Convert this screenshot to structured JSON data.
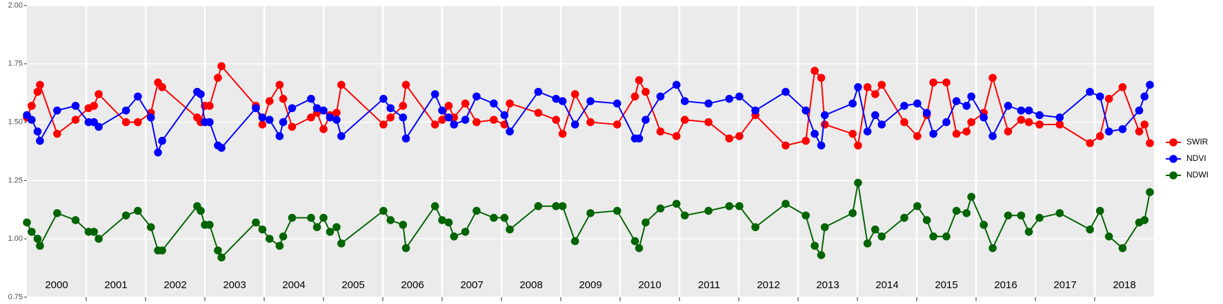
{
  "chart_data": {
    "type": "line",
    "x": [
      2000.0,
      2000.08,
      2000.18,
      2000.22,
      2000.51,
      2000.82,
      2001.04,
      2001.13,
      2001.21,
      2001.67,
      2001.87,
      2002.09,
      2002.21,
      2002.28,
      2002.87,
      2002.93,
      2003.0,
      2003.08,
      2003.22,
      2003.28,
      2003.86,
      2003.97,
      2004.09,
      2004.26,
      2004.32,
      2004.47,
      2004.79,
      2004.89,
      2005.0,
      2005.11,
      2005.22,
      2005.3,
      2006.01,
      2006.13,
      2006.34,
      2006.39,
      2006.88,
      2007.0,
      2007.11,
      2007.2,
      2007.39,
      2007.58,
      2007.87,
      2008.05,
      2008.14,
      2008.62,
      2008.92,
      2009.03,
      2009.24,
      2009.5,
      2009.95,
      2010.25,
      2010.32,
      2010.43,
      2010.68,
      2010.95,
      2011.09,
      2011.49,
      2011.84,
      2012.01,
      2012.28,
      2012.79,
      2013.13,
      2013.28,
      2013.39,
      2013.45,
      2013.92,
      2014.01,
      2014.17,
      2014.3,
      2014.41,
      2014.79,
      2015.01,
      2015.17,
      2015.28,
      2015.5,
      2015.67,
      2015.84,
      2015.92,
      2016.13,
      2016.28,
      2016.54,
      2016.76,
      2016.89,
      2017.07,
      2017.41,
      2017.92,
      2018.09,
      2018.24,
      2018.47,
      2018.75,
      2018.84,
      2018.93
    ],
    "series": [
      {
        "name": "SWIR",
        "color": "#ff0000",
        "values": [
          1.52,
          1.57,
          1.63,
          1.66,
          1.45,
          1.51,
          1.56,
          1.57,
          1.62,
          1.5,
          1.5,
          1.54,
          1.67,
          1.65,
          1.52,
          1.5,
          1.57,
          1.57,
          1.69,
          1.74,
          1.57,
          1.49,
          1.59,
          1.66,
          1.6,
          1.48,
          1.52,
          1.54,
          1.47,
          1.53,
          1.54,
          1.66,
          1.49,
          1.52,
          1.57,
          1.66,
          1.49,
          1.51,
          1.57,
          1.52,
          1.58,
          1.5,
          1.51,
          1.49,
          1.58,
          1.54,
          1.51,
          1.45,
          1.62,
          1.5,
          1.49,
          1.61,
          1.68,
          1.63,
          1.46,
          1.44,
          1.51,
          1.5,
          1.43,
          1.44,
          1.53,
          1.4,
          1.42,
          1.72,
          1.69,
          1.49,
          1.45,
          1.4,
          1.65,
          1.62,
          1.66,
          1.5,
          1.44,
          1.53,
          1.67,
          1.67,
          1.45,
          1.46,
          1.5,
          1.54,
          1.69,
          1.46,
          1.51,
          1.5,
          1.49,
          1.49,
          1.41,
          1.44,
          1.6,
          1.65,
          1.46,
          1.49,
          1.41
        ]
      },
      {
        "name": "NDVI",
        "color": "#0000ff",
        "values": [
          1.53,
          1.51,
          1.46,
          1.42,
          1.55,
          1.57,
          1.5,
          1.5,
          1.48,
          1.55,
          1.61,
          1.52,
          1.37,
          1.42,
          1.63,
          1.62,
          1.5,
          1.5,
          1.4,
          1.39,
          1.56,
          1.52,
          1.51,
          1.44,
          1.5,
          1.56,
          1.6,
          1.56,
          1.55,
          1.52,
          1.51,
          1.44,
          1.6,
          1.56,
          1.52,
          1.43,
          1.62,
          1.55,
          1.52,
          1.49,
          1.51,
          1.61,
          1.58,
          1.53,
          1.46,
          1.63,
          1.6,
          1.59,
          1.49,
          1.59,
          1.58,
          1.43,
          1.43,
          1.51,
          1.61,
          1.66,
          1.59,
          1.58,
          1.6,
          1.61,
          1.55,
          1.63,
          1.55,
          1.45,
          1.4,
          1.53,
          1.58,
          1.65,
          1.46,
          1.53,
          1.49,
          1.57,
          1.58,
          1.54,
          1.45,
          1.5,
          1.59,
          1.57,
          1.61,
          1.52,
          1.44,
          1.57,
          1.55,
          1.55,
          1.53,
          1.52,
          1.63,
          1.61,
          1.46,
          1.47,
          1.55,
          1.61,
          1.66
        ]
      },
      {
        "name": "NDWI",
        "color": "#006400",
        "values": [
          1.07,
          1.03,
          1.0,
          0.97,
          1.11,
          1.08,
          1.03,
          1.03,
          1.0,
          1.1,
          1.12,
          1.05,
          0.95,
          0.95,
          1.14,
          1.12,
          1.06,
          1.06,
          0.95,
          0.92,
          1.07,
          1.04,
          1.0,
          0.97,
          1.01,
          1.09,
          1.09,
          1.05,
          1.09,
          1.03,
          1.05,
          0.98,
          1.12,
          1.08,
          1.06,
          0.96,
          1.14,
          1.08,
          1.07,
          1.01,
          1.03,
          1.12,
          1.09,
          1.09,
          1.04,
          1.14,
          1.14,
          1.14,
          0.99,
          1.11,
          1.12,
          0.99,
          0.96,
          1.07,
          1.13,
          1.15,
          1.1,
          1.12,
          1.14,
          1.14,
          1.05,
          1.15,
          1.1,
          0.97,
          0.93,
          1.05,
          1.11,
          1.24,
          0.98,
          1.04,
          1.01,
          1.09,
          1.14,
          1.08,
          1.01,
          1.01,
          1.12,
          1.11,
          1.18,
          1.06,
          0.96,
          1.1,
          1.1,
          1.03,
          1.09,
          1.11,
          1.04,
          1.12,
          1.01,
          0.96,
          1.07,
          1.08,
          1.2
        ]
      }
    ],
    "xlim": [
      2000,
      2019
    ],
    "xticks": [
      {
        "value": 2000.5,
        "label": "2000"
      },
      {
        "value": 2001.5,
        "label": "2001"
      },
      {
        "value": 2002.5,
        "label": "2002"
      },
      {
        "value": 2003.5,
        "label": "2003"
      },
      {
        "value": 2004.5,
        "label": "2004"
      },
      {
        "value": 2005.5,
        "label": "2005"
      },
      {
        "value": 2006.5,
        "label": "2006"
      },
      {
        "value": 2007.5,
        "label": "2007"
      },
      {
        "value": 2008.5,
        "label": "2008"
      },
      {
        "value": 2009.5,
        "label": "2009"
      },
      {
        "value": 2010.5,
        "label": "2010"
      },
      {
        "value": 2011.5,
        "label": "2011"
      },
      {
        "value": 2012.5,
        "label": "2012"
      },
      {
        "value": 2013.5,
        "label": "2013"
      },
      {
        "value": 2014.5,
        "label": "2014"
      },
      {
        "value": 2015.5,
        "label": "2015"
      },
      {
        "value": 2016.5,
        "label": "2016"
      },
      {
        "value": 2017.5,
        "label": "2017"
      },
      {
        "value": 2018.5,
        "label": "2018"
      }
    ],
    "xgrid": [
      2001,
      2002,
      2003,
      2004,
      2005,
      2006,
      2007,
      2008,
      2009,
      2010,
      2011,
      2012,
      2013,
      2014,
      2015,
      2016,
      2017,
      2018
    ],
    "ylim": [
      0.75,
      2.0
    ],
    "yticks": [
      0.75,
      {
        "value": 1.0,
        "label": "1.00"
      },
      1.25,
      {
        "value": 1.5,
        "label": "1.50"
      },
      1.75,
      {
        "value": 2.0,
        "label": "2.00"
      }
    ],
    "grid": true
  }
}
